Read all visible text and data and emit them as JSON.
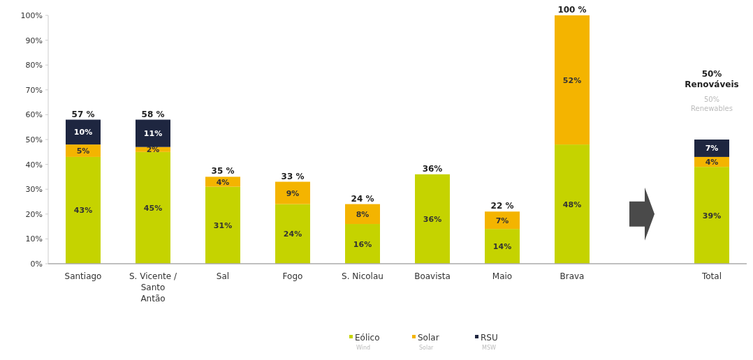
{
  "chart_data": {
    "type": "bar",
    "stacked": true,
    "categories": [
      "Santiago",
      "S. Vicente / Santo Antão",
      "Sal",
      "Fogo",
      "S. Nicolau",
      "Boavista",
      "Maio",
      "Brava",
      null,
      "Total"
    ],
    "series": [
      {
        "name": "Eólico",
        "color": "#c5d300",
        "values": [
          43,
          45,
          31,
          24,
          16,
          36,
          14,
          48,
          null,
          39
        ],
        "value_labels": [
          "43%",
          "45%",
          "31%",
          "24%",
          "16%",
          "36%",
          "14%",
          "48%",
          null,
          "39%"
        ]
      },
      {
        "name": "Solar",
        "color": "#f4b400",
        "values": [
          5,
          2,
          4,
          9,
          8,
          null,
          7,
          52,
          null,
          4
        ],
        "value_labels": [
          "5%",
          "2%",
          "4%",
          "9%",
          "8%",
          null,
          "7%",
          "52%",
          null,
          "4%"
        ]
      },
      {
        "name": "RSU",
        "color": "#1e2640",
        "values": [
          10,
          11,
          null,
          null,
          null,
          null,
          null,
          null,
          null,
          7
        ],
        "value_labels": [
          "10%",
          "11%",
          null,
          null,
          null,
          null,
          null,
          null,
          null,
          "7%"
        ]
      }
    ],
    "totals": [
      "57 %",
      "58 %",
      "35 %",
      "33 %",
      "24 %",
      "36%",
      "22 %",
      "100 %",
      null,
      null
    ],
    "ylim": [
      0,
      100
    ],
    "yticks": [
      {
        "value": 0,
        "label": "0%"
      },
      {
        "value": 10,
        "label": "10%"
      },
      {
        "value": 20,
        "label": "20%"
      },
      {
        "value": 30,
        "label": "30%"
      },
      {
        "value": 40,
        "label": "40%"
      },
      {
        "value": 50,
        "label": "50%"
      },
      {
        "value": 60,
        "label": "60%"
      },
      {
        "value": 70,
        "label": "70%"
      },
      {
        "value": 80,
        "label": "80%"
      },
      {
        "value": 90,
        "label": "90%"
      },
      {
        "value": 100,
        "label": "100%"
      }
    ],
    "legend": "bottom",
    "annotations": [
      "50% Renováveis",
      "50% Renewables",
      "Wind",
      "Solar",
      "MSW"
    ]
  }
}
